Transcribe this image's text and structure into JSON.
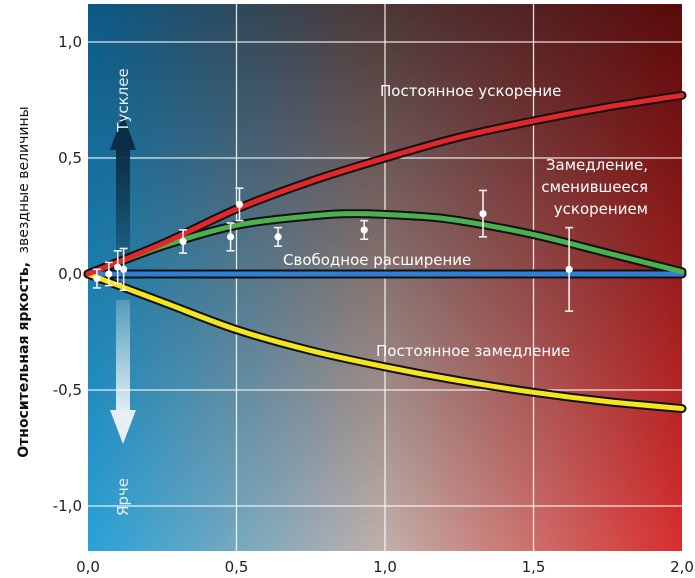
{
  "chart_data": {
    "type": "line",
    "ylabel_bold": "Относительная яркость,",
    "ylabel_regular": "звездные величины",
    "xlim": [
      0,
      2.0
    ],
    "ylim": [
      -1.2,
      1.1
    ],
    "x_ticks": [
      "0,0",
      "0,5",
      "1,0",
      "1,5",
      "2,0"
    ],
    "y_ticks": [
      "1,0",
      "0,5",
      "0,0",
      "-0,5",
      "-1,0"
    ],
    "grid": true,
    "arrow_up_label": "Тусклее",
    "arrow_down_label": "Ярче",
    "series": [
      {
        "name": "Постоянное ускорение",
        "color": "#e3262a",
        "x": [
          0,
          0.25,
          0.5,
          0.75,
          1.0,
          1.25,
          1.5,
          1.75,
          2.0
        ],
        "y": [
          0,
          0.13,
          0.28,
          0.4,
          0.5,
          0.59,
          0.66,
          0.72,
          0.77
        ]
      },
      {
        "name": "Замедление, сменившееся ускорением",
        "color": "#4caf50",
        "x": [
          0,
          0.25,
          0.5,
          0.75,
          0.9,
          1.1,
          1.25,
          1.5,
          1.75,
          2.0
        ],
        "y": [
          0,
          0.12,
          0.21,
          0.25,
          0.26,
          0.25,
          0.23,
          0.17,
          0.09,
          0.01
        ]
      },
      {
        "name": "Свободное расширение",
        "color": "#2f7fd6",
        "x": [
          0,
          2.0
        ],
        "y": [
          0,
          0
        ]
      },
      {
        "name": "Постоянное замедление",
        "color": "#f5e51e",
        "x": [
          0,
          0.25,
          0.5,
          0.75,
          1.0,
          1.25,
          1.5,
          1.75,
          2.0
        ],
        "y": [
          0,
          -0.12,
          -0.24,
          -0.33,
          -0.4,
          -0.46,
          -0.51,
          -0.55,
          -0.58
        ]
      }
    ],
    "data_points": [
      {
        "x": 0.03,
        "y": -0.02,
        "err": 0.04
      },
      {
        "x": 0.07,
        "y": 0.0,
        "err": 0.05
      },
      {
        "x": 0.1,
        "y": 0.03,
        "err": 0.07
      },
      {
        "x": 0.12,
        "y": 0.02,
        "err": 0.09
      },
      {
        "x": 0.32,
        "y": 0.14,
        "err": 0.05
      },
      {
        "x": 0.48,
        "y": 0.16,
        "err": 0.06
      },
      {
        "x": 0.51,
        "y": 0.3,
        "err": 0.07
      },
      {
        "x": 0.64,
        "y": 0.16,
        "err": 0.04
      },
      {
        "x": 0.93,
        "y": 0.19,
        "err": 0.04
      },
      {
        "x": 1.33,
        "y": 0.26,
        "err": 0.1
      },
      {
        "x": 1.62,
        "y": 0.02,
        "err": 0.18
      }
    ]
  }
}
